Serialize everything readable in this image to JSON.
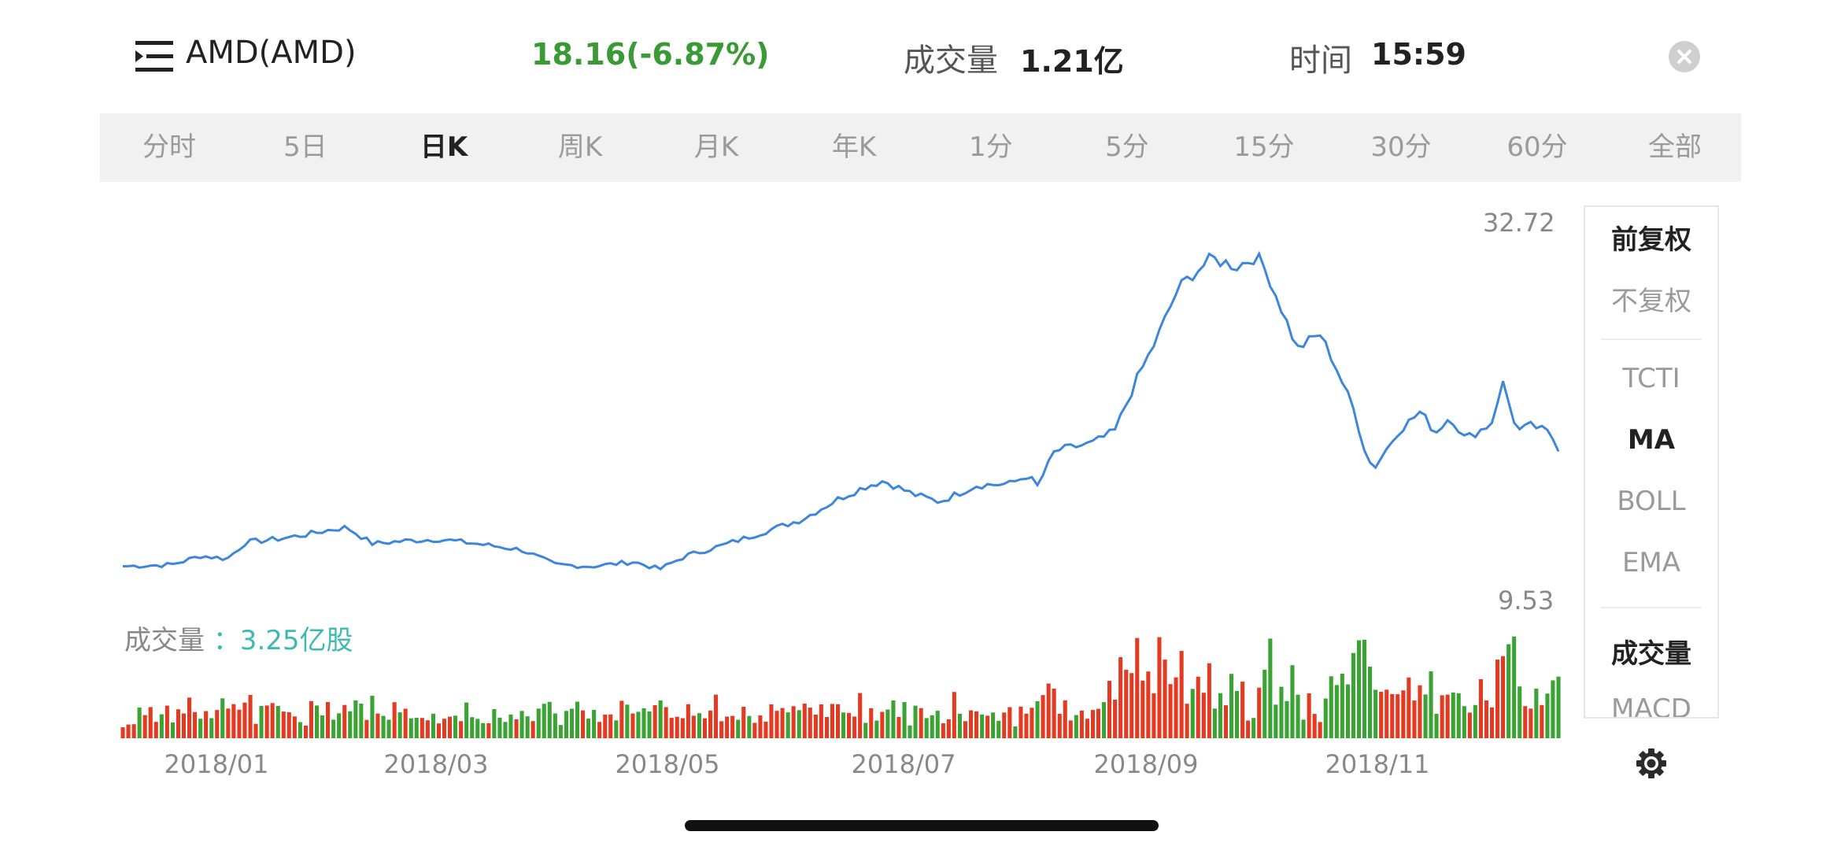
{
  "header": {
    "menu_icon": "menu-list-icon",
    "stock_name": "AMD(AMD)",
    "price_change": "18.16(-6.87%)",
    "volume_label": "成交量",
    "volume_value": "1.21亿",
    "time_label": "时间",
    "time_value": "15:59",
    "close_icon": "close-circle-icon"
  },
  "tabs": [
    {
      "label": "分时",
      "active": false
    },
    {
      "label": "5日",
      "active": false
    },
    {
      "label": "日K",
      "active": true
    },
    {
      "label": "周K",
      "active": false
    },
    {
      "label": "月K",
      "active": false
    },
    {
      "label": "年K",
      "active": false
    },
    {
      "label": "1分",
      "active": false
    },
    {
      "label": "5分",
      "active": false
    },
    {
      "label": "15分",
      "active": false
    },
    {
      "label": "30分",
      "active": false
    },
    {
      "label": "60分",
      "active": false
    },
    {
      "label": "全部",
      "active": false
    }
  ],
  "side_panel": {
    "items": [
      {
        "label": "前复权",
        "selected": true
      },
      {
        "label": "不复权",
        "selected": false
      },
      {
        "label": "TCTI",
        "selected": false
      },
      {
        "label": "MA",
        "selected": true
      },
      {
        "label": "BOLL",
        "selected": false
      },
      {
        "label": "EMA",
        "selected": false
      },
      {
        "label": "成交量",
        "selected": true
      },
      {
        "label": "MACD",
        "selected": false
      }
    ]
  },
  "volume_legend": {
    "label": "成交量",
    "value": "：3.25亿股"
  },
  "settings_icon": "gear-icon",
  "colors": {
    "line": "#3d86d9",
    "up": "#e33a22",
    "down": "#3aa333",
    "price_green": "#3a9a35",
    "volume_teal": "#3dbab0"
  },
  "chart_data": {
    "type": "line",
    "ylim": [
      9.53,
      32.72
    ],
    "ymax_label": "32.72",
    "ymin_label": "9.53",
    "x_tick_labels": [
      "2018/01",
      "2018/03",
      "2018/05",
      "2018/07",
      "2018/09",
      "2018/11"
    ],
    "price_keypoints": [
      [
        "2017-12-15",
        10.5
      ],
      [
        "2017-12-28",
        10.6
      ],
      [
        "2018-01-05",
        11.2
      ],
      [
        "2018-01-12",
        11.0
      ],
      [
        "2018-01-17",
        12.1
      ],
      [
        "2018-01-25",
        12.3
      ],
      [
        "2018-02-02",
        12.6
      ],
      [
        "2018-02-08",
        12.9
      ],
      [
        "2018-02-13",
        13.1
      ],
      [
        "2018-02-20",
        12.0
      ],
      [
        "2018-03-01",
        12.2
      ],
      [
        "2018-03-10",
        12.3
      ],
      [
        "2018-03-20",
        12.0
      ],
      [
        "2018-04-01",
        11.6
      ],
      [
        "2018-04-10",
        10.6
      ],
      [
        "2018-04-20",
        10.5
      ],
      [
        "2018-05-01",
        10.8
      ],
      [
        "2018-05-08",
        10.3
      ],
      [
        "2018-05-15",
        11.2
      ],
      [
        "2018-05-25",
        11.9
      ],
      [
        "2018-06-05",
        12.8
      ],
      [
        "2018-06-15",
        13.6
      ],
      [
        "2018-06-25",
        15.0
      ],
      [
        "2018-07-02",
        15.8
      ],
      [
        "2018-07-07",
        16.2
      ],
      [
        "2018-07-15",
        15.3
      ],
      [
        "2018-07-22",
        14.8
      ],
      [
        "2018-08-01",
        15.9
      ],
      [
        "2018-08-10",
        16.0
      ],
      [
        "2018-08-15",
        16.6
      ],
      [
        "2018-08-17",
        15.7
      ],
      [
        "2018-08-22",
        18.2
      ],
      [
        "2018-09-01",
        18.7
      ],
      [
        "2018-09-07",
        19.5
      ],
      [
        "2018-09-13",
        23.0
      ],
      [
        "2018-09-18",
        25.5
      ],
      [
        "2018-09-24",
        29.0
      ],
      [
        "2018-09-28",
        30.0
      ],
      [
        "2018-10-03",
        31.0
      ],
      [
        "2018-10-10",
        30.5
      ],
      [
        "2018-10-15",
        31.2
      ],
      [
        "2018-10-18",
        30.0
      ],
      [
        "2018-10-22",
        27.5
      ],
      [
        "2018-10-26",
        25.0
      ],
      [
        "2018-11-01",
        26.0
      ],
      [
        "2018-11-05",
        24.0
      ],
      [
        "2018-11-10",
        21.0
      ],
      [
        "2018-11-14",
        17.5
      ],
      [
        "2018-11-16",
        17.2
      ],
      [
        "2018-11-22",
        19.5
      ],
      [
        "2018-11-28",
        20.8
      ],
      [
        "2018-12-02",
        19.4
      ],
      [
        "2018-12-06",
        20.5
      ],
      [
        "2018-12-10",
        19.0
      ],
      [
        "2018-12-17",
        20.0
      ],
      [
        "2018-12-20",
        22.8
      ],
      [
        "2018-12-24",
        19.5
      ],
      [
        "2018-12-28",
        19.9
      ],
      [
        "2019-01-02",
        19.3
      ],
      [
        "2019-01-04",
        18.16
      ]
    ]
  }
}
